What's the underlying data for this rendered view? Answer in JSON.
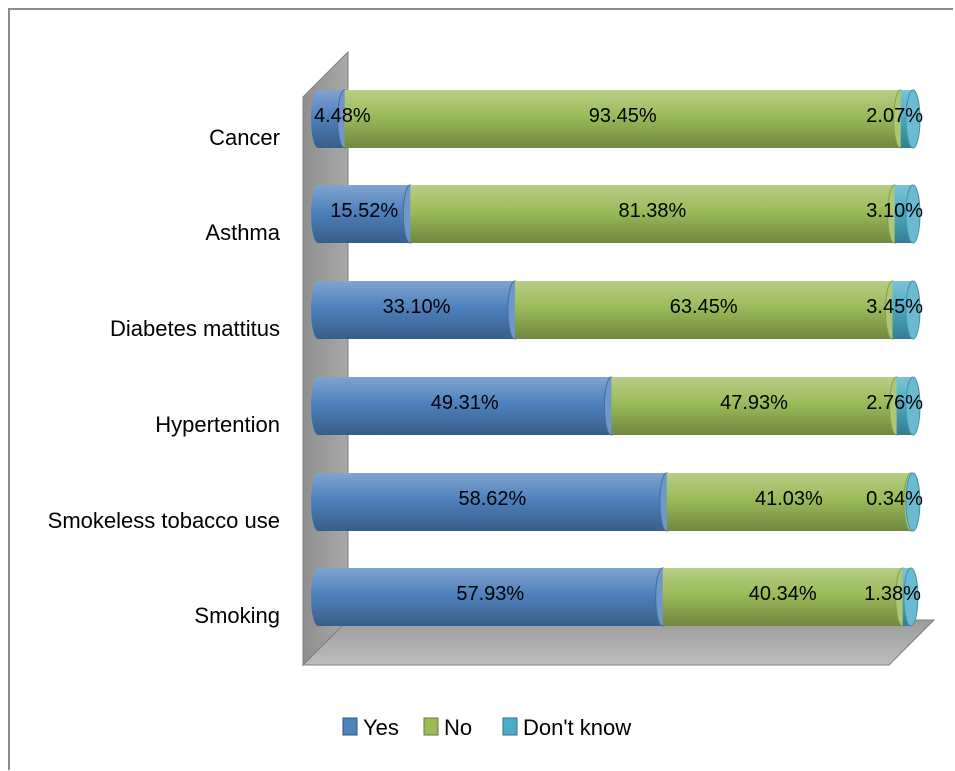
{
  "chart_data": {
    "type": "bar",
    "orientation": "horizontal",
    "stacked": "100%",
    "style": "3d-cylinder",
    "categories": [
      "Cancer",
      "Asthma",
      "Diabetes mattitus",
      "Hypertention",
      "Smokeless tobacco use",
      "Smoking"
    ],
    "series": [
      {
        "name": "Yes",
        "color": "#4f81bd",
        "values": [
          4.48,
          15.52,
          33.1,
          49.31,
          58.62,
          57.93
        ],
        "labels": [
          "4.48%",
          "15.52%",
          "33.10%",
          "49.31%",
          "58.62%",
          "57.93%"
        ]
      },
      {
        "name": "No",
        "color": "#9bbb59",
        "values": [
          93.45,
          81.38,
          63.45,
          47.93,
          41.03,
          40.34
        ],
        "labels": [
          "93.45%",
          "81.38%",
          "63.45%",
          "47.93%",
          "41.03%",
          "40.34%"
        ]
      },
      {
        "name": "Don't know",
        "color": "#4bacc6",
        "values": [
          2.07,
          3.1,
          3.45,
          2.76,
          0.34,
          1.38
        ],
        "labels": [
          "2.07%",
          "3.10%",
          "3.45%",
          "2.76%",
          "0.34%",
          "1.38%"
        ]
      }
    ],
    "xlim": [
      0,
      100
    ],
    "grid": false,
    "legend": "bottom"
  }
}
